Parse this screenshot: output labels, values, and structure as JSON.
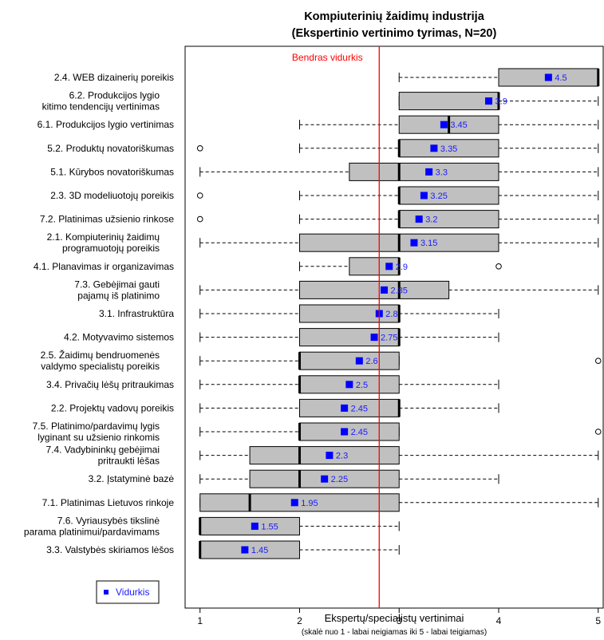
{
  "chart_data": {
    "type": "boxplot",
    "title": "Kompiuterinių žaidimų industrija",
    "subtitle": "(Ekspertinio vertinimo tyrimas, N=20)",
    "xlabel": "Ekspertų/specialistų vertinimai",
    "xlabel_sub": "(skalė nuo 1 - labai neigiamas iki 5 - labai teigiamas)",
    "xlim": [
      0.85,
      5.05
    ],
    "xticks": [
      1,
      2,
      3,
      4,
      5
    ],
    "grid": false,
    "reference_line": {
      "label": "Bendras vidurkis",
      "value": 2.8,
      "color": "#ff0000"
    },
    "legend": {
      "label": "Vidurkis",
      "position": "bottom-left"
    },
    "colors": {
      "box": "#c0c0c0",
      "mean": "#0000ff",
      "mean_label": "#1a1aff",
      "reference": "#ff0000"
    },
    "series": [
      {
        "label": [
          "2.4. WEB dizainerių poreikis"
        ],
        "min": 3,
        "q1": 4,
        "median": 5,
        "q3": 5,
        "max": 5,
        "mean": 4.5,
        "mean_label": "4.5",
        "outliers": []
      },
      {
        "label": [
          "6.2. Produkcijos lygio",
          "kitimo tendencijų vertinimas"
        ],
        "min": 3,
        "q1": 3,
        "median": 4,
        "q3": 4,
        "max": 5,
        "mean": 3.9,
        "mean_label": "3.9",
        "outliers": []
      },
      {
        "label": [
          "6.1. Produkcijos lygio vertinimas"
        ],
        "min": 2,
        "q1": 3,
        "median": 3.5,
        "q3": 4,
        "max": 5,
        "mean": 3.45,
        "mean_label": "3.45",
        "outliers": []
      },
      {
        "label": [
          "5.2. Produktų novatoriškumas"
        ],
        "min": 2,
        "q1": 3,
        "median": 3,
        "q3": 4,
        "max": 5,
        "mean": 3.35,
        "mean_label": "3.35",
        "outliers": [
          1
        ]
      },
      {
        "label": [
          "5.1. Kūrybos novatoriškumas"
        ],
        "min": 1,
        "q1": 2.5,
        "median": 3,
        "q3": 4,
        "max": 5,
        "mean": 3.3,
        "mean_label": "3.3",
        "outliers": []
      },
      {
        "label": [
          "2.3. 3D modeliuotojų poreikis"
        ],
        "min": 2,
        "q1": 3,
        "median": 3,
        "q3": 4,
        "max": 5,
        "mean": 3.25,
        "mean_label": "3.25",
        "outliers": [
          1
        ]
      },
      {
        "label": [
          "7.2. Platinimas užsienio rinkose"
        ],
        "min": 2,
        "q1": 3,
        "median": 3,
        "q3": 4,
        "max": 5,
        "mean": 3.2,
        "mean_label": "3.2",
        "outliers": [
          1
        ]
      },
      {
        "label": [
          "2.1. Kompiuterinių žaidimų",
          "programuotojų poreikis"
        ],
        "min": 1,
        "q1": 2,
        "median": 3,
        "q3": 4,
        "max": 5,
        "mean": 3.15,
        "mean_label": "3.15",
        "outliers": []
      },
      {
        "label": [
          "4.1. Planavimas ir organizavimas"
        ],
        "min": 2,
        "q1": 2.5,
        "median": 3,
        "q3": 3,
        "max": 3,
        "mean": 2.9,
        "mean_label": "2.9",
        "outliers": [
          4
        ]
      },
      {
        "label": [
          "7.3. Gebėjimai gauti",
          "pajamų iš platinimo"
        ],
        "min": 1,
        "q1": 2,
        "median": 3,
        "q3": 3.5,
        "max": 5,
        "mean": 2.85,
        "mean_label": "2.85",
        "outliers": []
      },
      {
        "label": [
          "3.1. Infrastruktūra"
        ],
        "min": 1,
        "q1": 2,
        "median": 3,
        "q3": 3,
        "max": 4,
        "mean": 2.8,
        "mean_label": "2.8",
        "outliers": []
      },
      {
        "label": [
          "4.2. Motyvavimo sistemos"
        ],
        "min": 1,
        "q1": 2,
        "median": 3,
        "q3": 3,
        "max": 4,
        "mean": 2.75,
        "mean_label": "2.75",
        "outliers": []
      },
      {
        "label": [
          "2.5. Žaidimų bendruomenės",
          "valdymo specialistų poreikis"
        ],
        "min": 1,
        "q1": 2,
        "median": 2,
        "q3": 3,
        "max": 3,
        "mean": 2.6,
        "mean_label": "2.6",
        "outliers": [
          5
        ]
      },
      {
        "label": [
          "3.4. Privačių lėšų pritraukimas"
        ],
        "min": 1,
        "q1": 2,
        "median": 2,
        "q3": 3,
        "max": 4,
        "mean": 2.5,
        "mean_label": "2.5",
        "outliers": []
      },
      {
        "label": [
          "2.2. Projektų vadovų poreikis"
        ],
        "min": 1,
        "q1": 2,
        "median": 3,
        "q3": 3,
        "max": 4,
        "mean": 2.45,
        "mean_label": "2.45",
        "outliers": []
      },
      {
        "label": [
          "7.5. Platinimo/pardavimų lygis",
          "lyginant su užsienio rinkomis"
        ],
        "min": 1,
        "q1": 2,
        "median": 2,
        "q3": 3,
        "max": 3,
        "mean": 2.45,
        "mean_label": "2.45",
        "outliers": [
          5
        ]
      },
      {
        "label": [
          "7.4. Vadybininkų gebėjimai",
          "pritraukti lėšas"
        ],
        "min": 1,
        "q1": 1.5,
        "median": 2,
        "q3": 3,
        "max": 5,
        "mean": 2.3,
        "mean_label": "2.3",
        "outliers": []
      },
      {
        "label": [
          "3.2. Įstatyminė bazė"
        ],
        "min": 1,
        "q1": 1.5,
        "median": 2,
        "q3": 3,
        "max": 4,
        "mean": 2.25,
        "mean_label": "2.25",
        "outliers": []
      },
      {
        "label": [
          "7.1. Platinimas Lietuvos rinkoje"
        ],
        "min": 1,
        "q1": 1,
        "median": 1.5,
        "q3": 3,
        "max": 5,
        "mean": 1.95,
        "mean_label": "1.95",
        "outliers": []
      },
      {
        "label": [
          "7.6. Vyriausybės tikslinė",
          "parama platinimui/pardavimams"
        ],
        "min": 1,
        "q1": 1,
        "median": 1,
        "q3": 2,
        "max": 3,
        "mean": 1.55,
        "mean_label": "1.55",
        "outliers": []
      },
      {
        "label": [
          "3.3. Valstybės skiriamos lėšos"
        ],
        "min": 1,
        "q1": 1,
        "median": 1,
        "q3": 2,
        "max": 3,
        "mean": 1.45,
        "mean_label": "1.45",
        "outliers": []
      }
    ]
  }
}
